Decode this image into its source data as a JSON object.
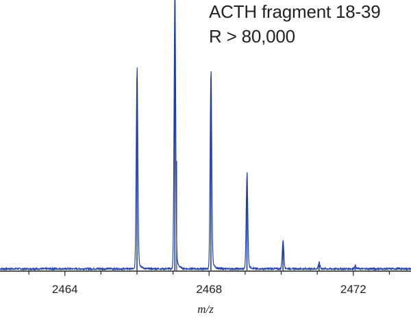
{
  "chart_data": {
    "type": "line",
    "title": "",
    "annotations": [
      "ACTH fragment 18-39",
      "R > 80,000"
    ],
    "xlabel": "m/z",
    "ylabel": "",
    "xlim": [
      2462.2,
      2473.6
    ],
    "ylim": [
      0,
      1.0
    ],
    "x_ticks": [
      2464,
      2468,
      2472
    ],
    "x_tick_labels": [
      "2464",
      "2468",
      "2472"
    ],
    "grid": false,
    "series_color": "#1f3fa6",
    "series": [
      {
        "peaks": [
          {
            "mz": 2466.0,
            "intensity": 0.71
          },
          {
            "mz": 2467.05,
            "intensity": 0.992
          },
          {
            "mz": 2468.05,
            "intensity": 0.71
          },
          {
            "mz": 2469.05,
            "intensity": 0.34
          },
          {
            "mz": 2470.05,
            "intensity": 0.1
          },
          {
            "mz": 2471.05,
            "intensity": 0.022
          },
          {
            "mz": 2472.05,
            "intensity": 0.012
          }
        ],
        "shoulder": {
          "mz": 2467.1,
          "intensity": 0.405
        }
      }
    ]
  }
}
